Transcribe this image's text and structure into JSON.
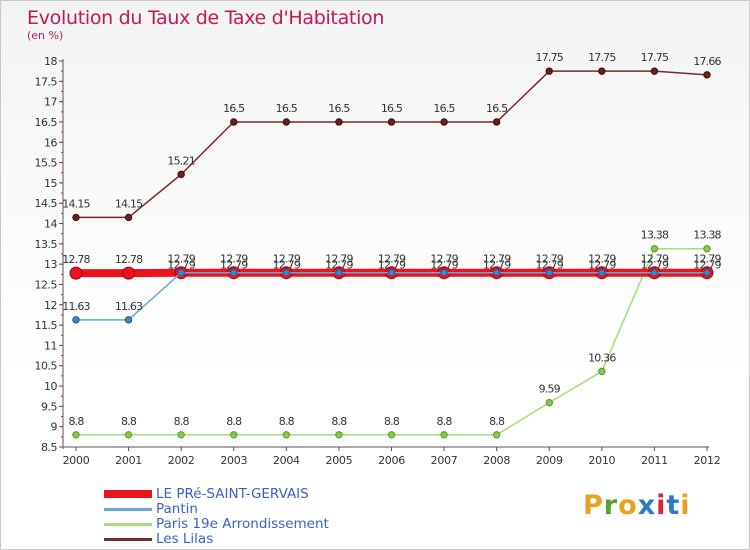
{
  "chart": {
    "title": "Evolution du Taux de Taxe d'Habitation",
    "subtitle": "(en %)"
  },
  "logo": {
    "text": "Proxiti",
    "colors": [
      "#e6a21e",
      "#5aa02c",
      "#e6a21e",
      "#2e7bc4",
      "#d8263c",
      "#2e7bc4",
      "#e6a21e"
    ]
  },
  "chart_data": {
    "type": "line",
    "title": "Evolution du Taux de Taxe d'Habitation",
    "ylabel": "(en %)",
    "xlabel": "",
    "ylim": [
      8.5,
      18
    ],
    "yticks": [
      8.5,
      9,
      9.5,
      10,
      10.5,
      11,
      11.5,
      12,
      12.5,
      13,
      13.5,
      14,
      14.5,
      15,
      15.5,
      16,
      16.5,
      17,
      17.5,
      18
    ],
    "x": [
      "2000",
      "2001",
      "2002",
      "2003",
      "2004",
      "2005",
      "2006",
      "2007",
      "2008",
      "2009",
      "2010",
      "2011",
      "2012"
    ],
    "grid": false,
    "legend": "bottom-left",
    "series": [
      {
        "name": "LE PRé-SAINT-GERVAIS",
        "color": "#e8141e",
        "values": [
          12.78,
          12.78,
          12.79,
          12.79,
          12.79,
          12.79,
          12.79,
          12.79,
          12.79,
          12.79,
          12.79,
          12.79,
          12.79
        ],
        "labels": [
          "12.78",
          "12.78",
          "12.79",
          "12.79",
          "12.79",
          "12.79",
          "12.79",
          "12.79",
          "12.79",
          "12.79",
          "12.79",
          "12.79",
          "12.79"
        ]
      },
      {
        "name": "Pantin",
        "color": "#6aa6d6",
        "values": [
          11.63,
          11.63,
          12.79,
          12.79,
          12.79,
          12.79,
          12.79,
          12.79,
          12.79,
          12.79,
          12.79,
          12.79,
          12.79
        ],
        "labels": [
          "11.63",
          "11.63",
          "12.79",
          "12.79",
          "12.79",
          "12.79",
          "12.79",
          "12.79",
          "12.79",
          "12.79",
          "12.79",
          "12.79",
          "12.79"
        ]
      },
      {
        "name": "Paris 19e  Arrondissement",
        "color": "#a6dc7a",
        "values": [
          8.8,
          8.8,
          8.8,
          8.8,
          8.8,
          8.8,
          8.8,
          8.8,
          8.8,
          9.59,
          10.36,
          13.38,
          13.38
        ],
        "labels": [
          "8.8",
          "8.8",
          "8.8",
          "8.8",
          "8.8",
          "8.8",
          "8.8",
          "8.8",
          "8.8",
          "9.59",
          "10.36",
          "13.38",
          "13.38"
        ]
      },
      {
        "name": "Les Lilas",
        "color": "#7a2a2a",
        "values": [
          14.15,
          14.15,
          15.21,
          16.5,
          16.5,
          16.5,
          16.5,
          16.5,
          16.5,
          17.75,
          17.75,
          17.75,
          17.66
        ],
        "labels": [
          "14.15",
          "14.15",
          "15.21",
          "16.5",
          "16.5",
          "16.5",
          "16.5",
          "16.5",
          "16.5",
          "17.75",
          "17.75",
          "17.75",
          "17.66"
        ]
      }
    ]
  }
}
